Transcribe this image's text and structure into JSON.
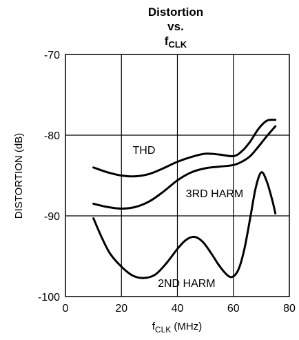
{
  "chart_data": {
    "type": "line",
    "title": {
      "line1": "Distortion",
      "line2": "vs.",
      "line3_main": "f",
      "line3_sub": "CLK"
    },
    "xlabel": {
      "main": "f",
      "sub": "CLK",
      "rest": " (MHz)"
    },
    "ylabel": "DISTORTION (dB)",
    "xlim": [
      0,
      80
    ],
    "ylim": [
      -100,
      -70
    ],
    "xticks": [
      0,
      20,
      40,
      60,
      80
    ],
    "xtick_labels": [
      "0",
      "20",
      "40",
      "60",
      "80"
    ],
    "yticks": [
      -70,
      -80,
      -90,
      -100
    ],
    "ytick_labels": [
      "-70",
      "-80",
      "-90",
      "-100"
    ],
    "grid": true,
    "series": [
      {
        "name": "THD",
        "x": [
          10,
          15,
          20,
          25,
          30,
          35,
          40,
          45,
          50,
          55,
          60,
          63,
          66,
          69,
          72,
          75
        ],
        "y": [
          -84.0,
          -84.6,
          -85.0,
          -85.1,
          -84.8,
          -84.1,
          -83.3,
          -82.7,
          -82.3,
          -82.4,
          -82.6,
          -82.0,
          -80.8,
          -79.2,
          -78.2,
          -78.1
        ]
      },
      {
        "name": "3RD HARM",
        "x": [
          10,
          15,
          20,
          25,
          30,
          35,
          40,
          45,
          50,
          55,
          60,
          63,
          66,
          69,
          72,
          75
        ],
        "y": [
          -88.5,
          -88.9,
          -89.1,
          -88.9,
          -88.2,
          -87.0,
          -85.6,
          -84.6,
          -84.1,
          -83.9,
          -83.7,
          -83.3,
          -82.6,
          -81.4,
          -80.1,
          -78.9
        ]
      },
      {
        "name": "2ND HARM",
        "x": [
          10,
          13,
          16,
          20,
          24,
          28,
          32,
          36,
          40,
          43,
          46,
          49,
          52,
          55,
          58,
          60,
          62,
          64,
          66,
          68,
          70,
          72,
          74,
          75
        ],
        "y": [
          -90.3,
          -92.7,
          -94.7,
          -96.3,
          -97.4,
          -97.7,
          -97.3,
          -95.9,
          -94.1,
          -93.0,
          -92.6,
          -93.2,
          -94.6,
          -96.2,
          -97.4,
          -97.5,
          -96.5,
          -94.0,
          -90.3,
          -86.5,
          -84.6,
          -85.8,
          -88.2,
          -89.7
        ]
      }
    ],
    "annotations": [
      {
        "text": "THD",
        "x": 24,
        "y": -81.8
      },
      {
        "text": "3RD HARM",
        "x": 43,
        "y": -87.2
      },
      {
        "text": "2ND HARM",
        "x": 33,
        "y": -98.3
      }
    ]
  }
}
